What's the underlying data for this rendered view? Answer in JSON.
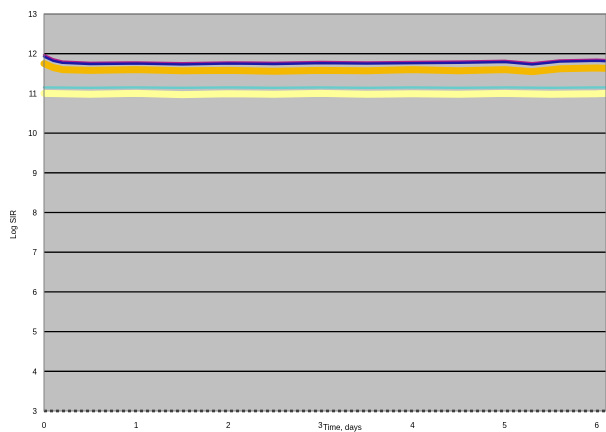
{
  "chart_data": {
    "type": "line",
    "title": "",
    "xlabel": "Time, days",
    "ylabel": "Log SIR",
    "xlim": [
      0,
      6.1
    ],
    "ylim": [
      3,
      13
    ],
    "x_ticks": [
      0,
      1,
      2,
      3,
      4,
      5,
      6
    ],
    "y_ticks": [
      3,
      4,
      5,
      6,
      7,
      8,
      9,
      10,
      11,
      12,
      13
    ],
    "grid": "horizontal",
    "legend": "none",
    "plot_background": "#c0c0c0",
    "gridline_color": "#000000",
    "series": [
      {
        "color": "#b0208c",
        "style": "line",
        "x": [
          0,
          0.1,
          0.2,
          0.5,
          1,
          1.5,
          2,
          2.5,
          3,
          3.5,
          4,
          4.5,
          5,
          5.3,
          5.6,
          6,
          6.1
        ],
        "y": [
          11.97,
          11.86,
          11.8,
          11.77,
          11.78,
          11.76,
          11.78,
          11.77,
          11.79,
          11.78,
          11.79,
          11.8,
          11.82,
          11.76,
          11.83,
          11.85,
          11.84
        ]
      },
      {
        "color": "#1a1aa6",
        "style": "line",
        "x": [
          0,
          0.1,
          0.2,
          0.5,
          1,
          1.5,
          2,
          2.5,
          3,
          3.5,
          4,
          4.5,
          5,
          5.3,
          5.6,
          6,
          6.1
        ],
        "y": [
          11.93,
          11.82,
          11.77,
          11.74,
          11.75,
          11.73,
          11.75,
          11.74,
          11.76,
          11.75,
          11.76,
          11.77,
          11.79,
          11.73,
          11.8,
          11.82,
          11.81
        ]
      },
      {
        "color": "#f5b800",
        "style": "band",
        "x": [
          0,
          0.1,
          0.2,
          0.5,
          1,
          1.5,
          2,
          2.5,
          3,
          3.5,
          4,
          4.5,
          5,
          5.3,
          5.6,
          6,
          6.1
        ],
        "y": [
          11.75,
          11.65,
          11.6,
          11.58,
          11.6,
          11.57,
          11.58,
          11.56,
          11.58,
          11.57,
          11.6,
          11.57,
          11.6,
          11.55,
          11.62,
          11.64,
          11.63
        ]
      },
      {
        "color": "#66cccc",
        "style": "line",
        "x": [
          0,
          0.5,
          1,
          1.5,
          2,
          2.5,
          3,
          3.5,
          4,
          4.5,
          5,
          5.5,
          6,
          6.1
        ],
        "y": [
          11.15,
          11.14,
          11.15,
          11.14,
          11.15,
          11.14,
          11.15,
          11.14,
          11.15,
          11.14,
          11.15,
          11.14,
          11.15,
          11.15
        ]
      },
      {
        "color": "#ffff99",
        "style": "band",
        "x": [
          0,
          0.5,
          1,
          1.5,
          2,
          2.5,
          3,
          3.5,
          4,
          4.5,
          5,
          5.5,
          6,
          6.1
        ],
        "y": [
          11.0,
          10.98,
          11.0,
          10.97,
          10.99,
          10.98,
          11.0,
          10.98,
          10.99,
          10.98,
          11.0,
          10.98,
          10.99,
          11.0
        ]
      },
      {
        "color": "#000000",
        "style": "dashed",
        "x": [
          0,
          6.1
        ],
        "y": [
          3.0,
          3.0
        ]
      }
    ]
  }
}
